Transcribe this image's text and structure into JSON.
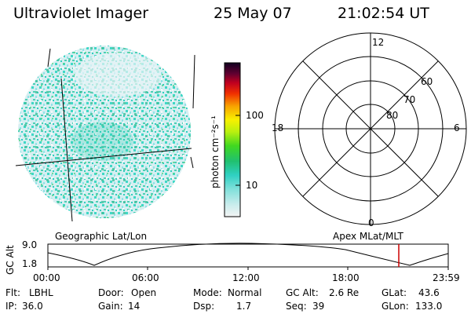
{
  "header": {
    "title": "Ultraviolet Imager",
    "date": "25 May 07",
    "time": "21:02:54 UT"
  },
  "colorbar": {
    "unit_label": "photon cm⁻²s⁻¹",
    "ticks": [
      "100",
      "10"
    ]
  },
  "polar_plot": {
    "mlt_labels": {
      "top": "12",
      "left": "18",
      "right": "6",
      "bottom": "0"
    },
    "lat_labels": [
      "60",
      "70",
      "80"
    ]
  },
  "projections": {
    "geographic": "Geographic Lat/Lon",
    "apex": "Apex MLat/MLT"
  },
  "altitude_plot": {
    "ylabel": "GC Alt",
    "yticks": [
      "9.0",
      "1.8"
    ],
    "xticks": [
      "00:00",
      "06:00",
      "12:00",
      "18:00",
      "23:59"
    ],
    "marker_color": "#cc0000"
  },
  "info": {
    "row1": [
      {
        "label": "Flt:",
        "value": "LBHL"
      },
      {
        "label": "Door:",
        "value": "Open"
      },
      {
        "label": "Mode:",
        "value": "Normal"
      },
      {
        "label": "GC Alt:",
        "value": "2.6 Re"
      },
      {
        "label": "GLat:",
        "value": "43.6"
      }
    ],
    "row2": [
      {
        "label": "IP:",
        "value": "36.0"
      },
      {
        "label": "Gain:",
        "value": "14"
      },
      {
        "label": "Dsp:",
        "value": "1.7"
      },
      {
        "label": "Seq:",
        "value": "39"
      },
      {
        "label": "GLon:",
        "value": "133.0"
      }
    ]
  },
  "colors": {
    "disk_base": "#d8ecf0",
    "disk_cyan": "#30d6c8",
    "disk_teal": "#4fc9a8",
    "disk_light": "#a8e4ea"
  }
}
